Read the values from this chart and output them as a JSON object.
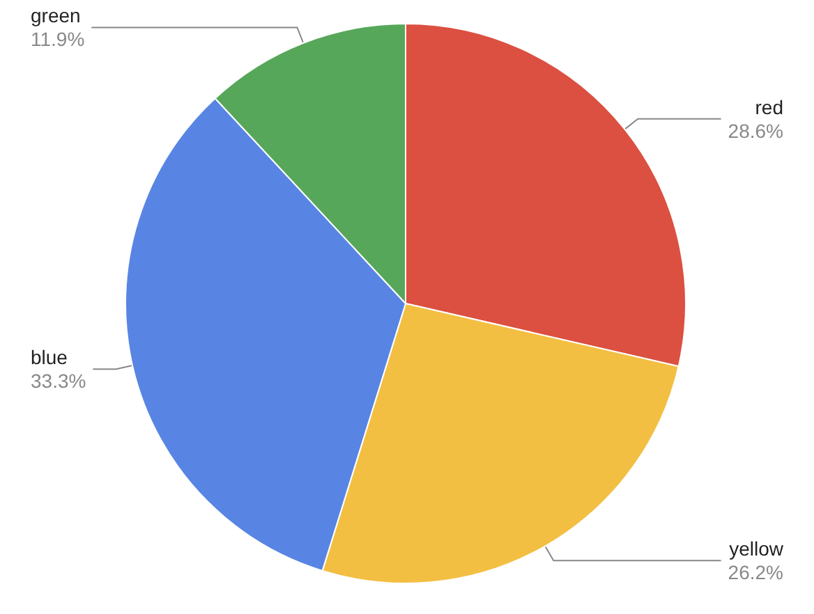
{
  "chart_data": {
    "type": "pie",
    "categories": [
      "red",
      "yellow",
      "blue",
      "green"
    ],
    "values": [
      28.6,
      26.2,
      33.3,
      11.9
    ],
    "colors": [
      "#db5040",
      "#f3bf42",
      "#5885e3",
      "#57a75a"
    ],
    "value_labels": [
      "28.6%",
      "26.2%",
      "33.3%",
      "11.9%"
    ],
    "legend": false
  }
}
